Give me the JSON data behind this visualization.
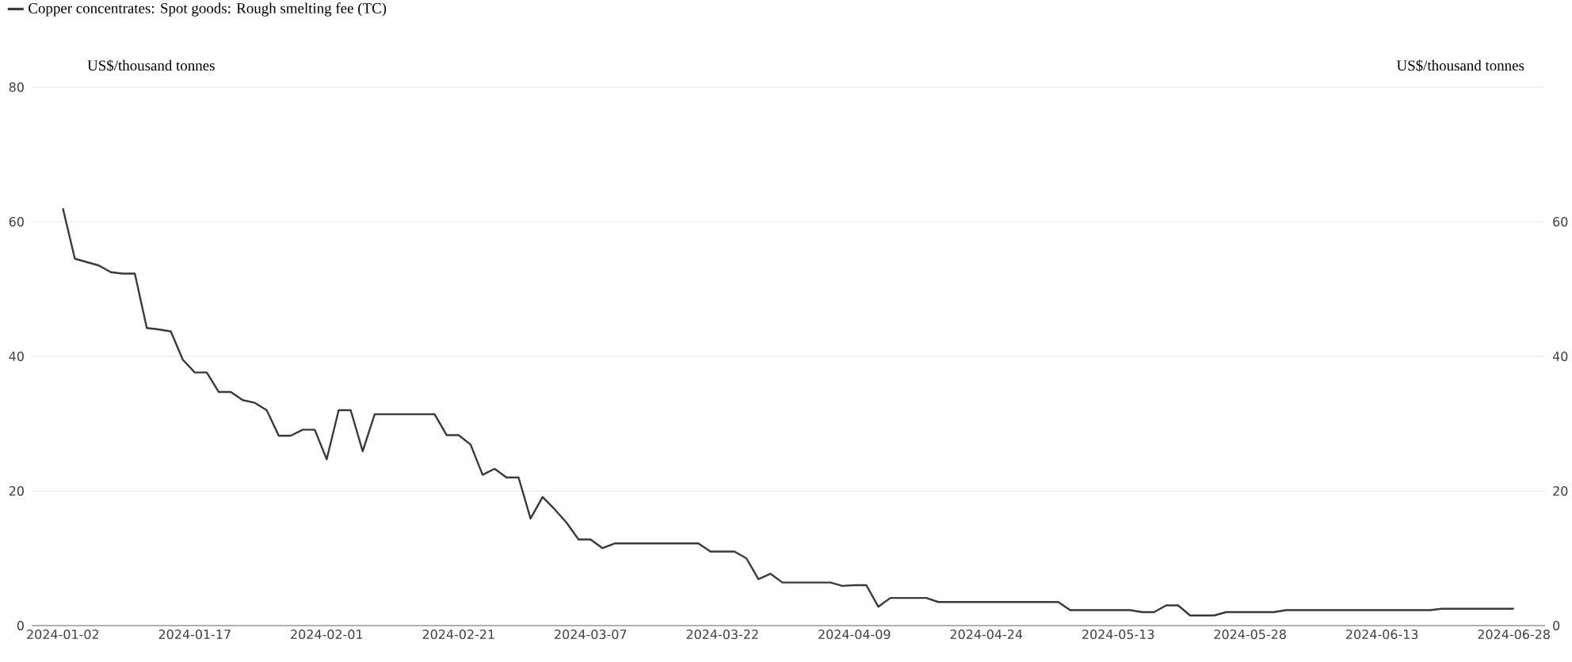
{
  "chart_data": {
    "type": "line",
    "ylabel": "US$/thousand tonnes",
    "y2label": "US$/thousand tonnes",
    "categories": [
      "2024-01-02",
      null,
      null,
      null,
      null,
      null,
      null,
      null,
      null,
      null,
      null,
      "2024-01-17",
      null,
      null,
      null,
      null,
      null,
      null,
      null,
      null,
      null,
      null,
      "2024-02-01",
      null,
      null,
      null,
      null,
      null,
      null,
      null,
      null,
      null,
      null,
      "2024-02-21",
      null,
      null,
      null,
      null,
      null,
      null,
      null,
      null,
      null,
      null,
      "2024-03-07",
      null,
      null,
      null,
      null,
      null,
      null,
      null,
      null,
      null,
      null,
      "2024-03-22",
      null,
      null,
      null,
      null,
      null,
      null,
      null,
      null,
      null,
      null,
      "2024-04-09",
      null,
      null,
      null,
      null,
      null,
      null,
      null,
      null,
      null,
      null,
      "2024-04-24",
      null,
      null,
      null,
      null,
      null,
      null,
      null,
      null,
      null,
      null,
      "2024-05-13",
      null,
      null,
      null,
      null,
      null,
      null,
      null,
      null,
      null,
      null,
      "2024-05-28",
      null,
      null,
      null,
      null,
      null,
      null,
      null,
      null,
      null,
      null,
      "2024-06-13",
      null,
      null,
      null,
      null,
      null,
      null,
      null,
      null,
      null,
      null,
      "2024-06-28"
    ],
    "series": [
      {
        "name": "Copper concentrates: Spot goods: Rough smelting fee (TC)",
        "color": "#3a3a3a",
        "values": [
          62,
          54.5,
          54,
          53.5,
          52.5,
          52.3,
          52.3,
          44.2,
          44,
          43.7,
          39.5,
          37.6,
          37.6,
          34.7,
          34.7,
          33.5,
          33.1,
          32,
          28.2,
          28.2,
          29.1,
          29.1,
          24.7,
          32,
          32,
          25.9,
          31.4,
          31.4,
          31.4,
          31.4,
          31.4,
          31.4,
          28.3,
          28.3,
          26.9,
          22.4,
          23.3,
          22,
          22,
          15.9,
          19.1,
          17.3,
          15.3,
          12.8,
          12.8,
          11.5,
          12.2,
          12.2,
          12.2,
          12.2,
          12.2,
          12.2,
          12.2,
          12.2,
          11,
          11,
          11,
          10,
          6.9,
          7.7,
          6.4,
          6.4,
          6.4,
          6.4,
          6.4,
          5.9,
          6,
          6,
          2.8,
          4.1,
          4.1,
          4.1,
          4.1,
          3.5,
          3.5,
          3.5,
          3.5,
          3.5,
          3.5,
          3.5,
          3.5,
          3.5,
          3.5,
          3.5,
          2.3,
          2.3,
          2.3,
          2.3,
          2.3,
          2.3,
          2,
          2,
          3,
          3,
          1.5,
          1.5,
          1.5,
          2,
          2,
          2,
          2,
          2,
          2.3,
          2.3,
          2.3,
          2.3,
          2.3,
          2.3,
          2.3,
          2.3,
          2.3,
          2.3,
          2.3,
          2.3,
          2.3,
          2.5,
          2.5,
          2.5,
          2.5,
          2.5,
          2.5,
          2.5
        ]
      }
    ],
    "ylim": [
      0,
      80
    ],
    "yticks": [
      0,
      20,
      40,
      60,
      80
    ],
    "y2lim": [
      0,
      80
    ],
    "y2ticks": [
      0,
      20,
      40,
      60
    ],
    "grid": "y",
    "legend": "top left"
  }
}
